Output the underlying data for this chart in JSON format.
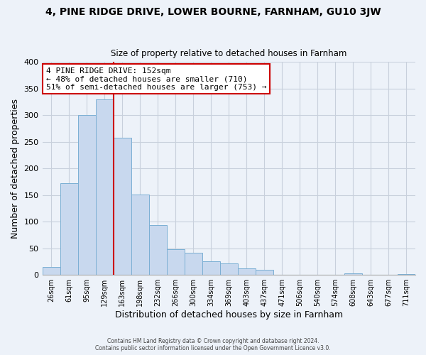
{
  "title": "4, PINE RIDGE DRIVE, LOWER BOURNE, FARNHAM, GU10 3JW",
  "subtitle": "Size of property relative to detached houses in Farnham",
  "xlabel": "Distribution of detached houses by size in Farnham",
  "ylabel": "Number of detached properties",
  "bar_color": "#c8d8ee",
  "bar_edge_color": "#7bafd4",
  "categories": [
    "26sqm",
    "61sqm",
    "95sqm",
    "129sqm",
    "163sqm",
    "198sqm",
    "232sqm",
    "266sqm",
    "300sqm",
    "334sqm",
    "369sqm",
    "403sqm",
    "437sqm",
    "471sqm",
    "506sqm",
    "540sqm",
    "574sqm",
    "608sqm",
    "643sqm",
    "677sqm",
    "711sqm"
  ],
  "values": [
    15,
    172,
    300,
    330,
    258,
    151,
    93,
    48,
    41,
    26,
    22,
    12,
    10,
    0,
    0,
    0,
    0,
    3,
    0,
    0,
    2
  ],
  "annotation_line1": "4 PINE RIDGE DRIVE: 152sqm",
  "annotation_line2": "← 48% of detached houses are smaller (710)",
  "annotation_line3": "51% of semi-detached houses are larger (753) →",
  "annotation_box_color": "#ffffff",
  "annotation_box_edge": "#cc0000",
  "vline_color": "#cc0000",
  "footer1": "Contains HM Land Registry data © Crown copyright and database right 2024.",
  "footer2": "Contains public sector information licensed under the Open Government Licence v3.0.",
  "ylim": [
    0,
    400
  ],
  "yticks": [
    0,
    50,
    100,
    150,
    200,
    250,
    300,
    350,
    400
  ],
  "grid_color": "#c8d0dc",
  "bg_color": "#edf2f9"
}
